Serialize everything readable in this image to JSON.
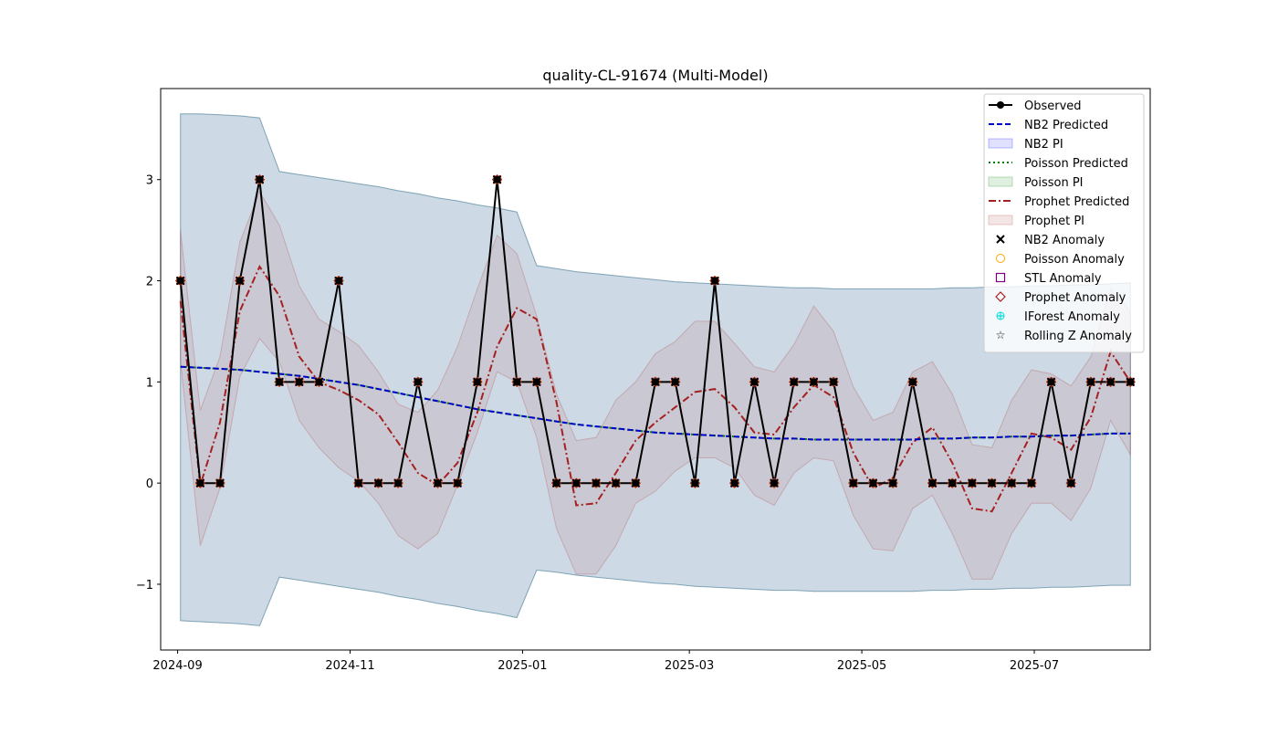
{
  "chart_data": {
    "type": "line",
    "title": "quality-CL-91674 (Multi-Model)",
    "xlabel": "",
    "ylabel": "",
    "x_dates": [
      "2024-09-02",
      "2024-09-09",
      "2024-09-16",
      "2024-09-23",
      "2024-09-30",
      "2024-10-07",
      "2024-10-14",
      "2024-10-21",
      "2024-10-28",
      "2024-11-04",
      "2024-11-11",
      "2024-11-18",
      "2024-11-25",
      "2024-12-02",
      "2024-12-09",
      "2024-12-16",
      "2024-12-23",
      "2024-12-30",
      "2025-01-06",
      "2025-01-13",
      "2025-01-20",
      "2025-01-27",
      "2025-02-03",
      "2025-02-10",
      "2025-02-17",
      "2025-02-24",
      "2025-03-03",
      "2025-03-10",
      "2025-03-17",
      "2025-03-24",
      "2025-03-31",
      "2025-04-07",
      "2025-04-14",
      "2025-04-21",
      "2025-04-28",
      "2025-05-05",
      "2025-05-12",
      "2025-05-19",
      "2025-05-26",
      "2025-06-02",
      "2025-06-09",
      "2025-06-16",
      "2025-06-23",
      "2025-06-30",
      "2025-07-07",
      "2025-07-14",
      "2025-07-21",
      "2025-07-28",
      "2025-08-04"
    ],
    "xlim": [
      "2024-08-26",
      "2025-08-11"
    ],
    "ylim": [
      -1.65,
      3.9
    ],
    "x_ticks": [
      "2024-09",
      "2024-11",
      "2025-01",
      "2025-03",
      "2025-05",
      "2025-07"
    ],
    "y_ticks": [
      -1,
      0,
      1,
      2,
      3
    ],
    "series": [
      {
        "name": "Observed",
        "color": "#000000",
        "style": "solid-marker",
        "values": [
          2,
          0,
          0,
          2,
          3,
          1,
          1,
          1,
          2,
          0,
          0,
          0,
          1,
          0,
          0,
          1,
          3,
          1,
          1,
          0,
          0,
          0,
          0,
          0,
          1,
          1,
          0,
          2,
          0,
          1,
          0,
          1,
          1,
          1,
          0,
          0,
          0,
          1,
          0,
          0,
          0,
          0,
          0,
          0,
          1,
          0,
          1,
          1,
          1
        ]
      },
      {
        "name": "NB2 Predicted",
        "color": "#0000cc",
        "style": "dashed",
        "values": [
          1.15,
          1.14,
          1.13,
          1.12,
          1.1,
          1.08,
          1.06,
          1.03,
          1.0,
          0.97,
          0.93,
          0.89,
          0.85,
          0.81,
          0.77,
          0.73,
          0.7,
          0.67,
          0.64,
          0.61,
          0.58,
          0.56,
          0.54,
          0.52,
          0.5,
          0.49,
          0.48,
          0.47,
          0.46,
          0.45,
          0.44,
          0.44,
          0.43,
          0.43,
          0.43,
          0.43,
          0.43,
          0.43,
          0.44,
          0.44,
          0.45,
          0.45,
          0.46,
          0.46,
          0.47,
          0.47,
          0.48,
          0.49,
          0.49
        ]
      },
      {
        "name": "Poisson Predicted",
        "color": "#008000",
        "style": "dotted",
        "values": [
          1.15,
          1.14,
          1.13,
          1.12,
          1.1,
          1.08,
          1.06,
          1.03,
          1.0,
          0.97,
          0.93,
          0.89,
          0.85,
          0.81,
          0.77,
          0.73,
          0.7,
          0.67,
          0.64,
          0.61,
          0.58,
          0.56,
          0.54,
          0.52,
          0.5,
          0.49,
          0.48,
          0.47,
          0.46,
          0.45,
          0.44,
          0.44,
          0.43,
          0.43,
          0.43,
          0.43,
          0.43,
          0.43,
          0.44,
          0.44,
          0.45,
          0.45,
          0.46,
          0.46,
          0.47,
          0.47,
          0.48,
          0.49,
          0.49
        ]
      },
      {
        "name": "Prophet Predicted",
        "color": "#a52020",
        "style": "dashdot",
        "values": [
          1.8,
          -0.02,
          0.6,
          1.7,
          2.14,
          1.85,
          1.25,
          1.0,
          0.92,
          0.82,
          0.68,
          0.4,
          0.1,
          -0.02,
          0.2,
          0.7,
          1.35,
          1.73,
          1.62,
          0.8,
          -0.22,
          -0.2,
          0.1,
          0.42,
          0.6,
          0.75,
          0.9,
          0.93,
          0.75,
          0.5,
          0.48,
          0.75,
          0.97,
          0.85,
          0.3,
          -0.05,
          0.05,
          0.4,
          0.55,
          0.2,
          -0.25,
          -0.28,
          0.1,
          0.49,
          0.45,
          0.33,
          0.65,
          1.3,
          1.0
        ]
      }
    ],
    "bands": [
      {
        "name": "NB2 PI",
        "color": "#0000ff",
        "opacity": 0.1,
        "lower": [
          -1.36,
          -1.37,
          -1.38,
          -1.39,
          -1.41,
          -0.93,
          -0.96,
          -0.99,
          -1.02,
          -1.05,
          -1.08,
          -1.12,
          -1.15,
          -1.19,
          -1.22,
          -1.26,
          -1.29,
          -1.33,
          -0.86,
          -0.88,
          -0.91,
          -0.93,
          -0.95,
          -0.97,
          -0.99,
          -1.0,
          -1.02,
          -1.03,
          -1.04,
          -1.05,
          -1.06,
          -1.06,
          -1.07,
          -1.07,
          -1.07,
          -1.07,
          -1.07,
          -1.07,
          -1.06,
          -1.06,
          -1.05,
          -1.05,
          -1.04,
          -1.04,
          -1.03,
          -1.03,
          -1.02,
          -1.01,
          -1.01
        ],
        "upper": [
          3.65,
          3.65,
          3.64,
          3.63,
          3.61,
          3.08,
          3.05,
          3.02,
          2.99,
          2.96,
          2.93,
          2.89,
          2.86,
          2.82,
          2.79,
          2.75,
          2.72,
          2.68,
          2.15,
          2.12,
          2.09,
          2.07,
          2.05,
          2.03,
          2.01,
          1.99,
          1.98,
          1.97,
          1.96,
          1.95,
          1.94,
          1.93,
          1.93,
          1.92,
          1.92,
          1.92,
          1.92,
          1.92,
          1.92,
          1.93,
          1.93,
          1.94,
          1.94,
          1.95,
          1.95,
          1.96,
          1.96,
          1.97,
          1.98
        ]
      },
      {
        "name": "Poisson PI",
        "color": "#008000",
        "opacity": 0.1,
        "lower": [
          -1.36,
          -1.37,
          -1.38,
          -1.39,
          -1.41,
          -0.93,
          -0.96,
          -0.99,
          -1.02,
          -1.05,
          -1.08,
          -1.12,
          -1.15,
          -1.19,
          -1.22,
          -1.26,
          -1.29,
          -1.33,
          -0.86,
          -0.88,
          -0.91,
          -0.93,
          -0.95,
          -0.97,
          -0.99,
          -1.0,
          -1.02,
          -1.03,
          -1.04,
          -1.05,
          -1.06,
          -1.06,
          -1.07,
          -1.07,
          -1.07,
          -1.07,
          -1.07,
          -1.07,
          -1.06,
          -1.06,
          -1.05,
          -1.05,
          -1.04,
          -1.04,
          -1.03,
          -1.03,
          -1.02,
          -1.01,
          -1.01
        ],
        "upper": [
          3.65,
          3.65,
          3.64,
          3.63,
          3.61,
          3.08,
          3.05,
          3.02,
          2.99,
          2.96,
          2.93,
          2.89,
          2.86,
          2.82,
          2.79,
          2.75,
          2.72,
          2.68,
          2.15,
          2.12,
          2.09,
          2.07,
          2.05,
          2.03,
          2.01,
          1.99,
          1.98,
          1.97,
          1.96,
          1.95,
          1.94,
          1.93,
          1.93,
          1.92,
          1.92,
          1.92,
          1.92,
          1.92,
          1.92,
          1.93,
          1.93,
          1.94,
          1.94,
          1.95,
          1.95,
          1.96,
          1.96,
          1.97,
          1.98
        ]
      },
      {
        "name": "Prophet PI",
        "color": "#b03030",
        "opacity": 0.1,
        "lower": [
          1.2,
          -0.62,
          -0.05,
          1.05,
          1.43,
          1.2,
          0.62,
          0.35,
          0.15,
          0.02,
          -0.2,
          -0.52,
          -0.65,
          -0.5,
          -0.02,
          0.5,
          1.1,
          1.0,
          0.45,
          -0.45,
          -0.9,
          -0.9,
          -0.62,
          -0.2,
          -0.08,
          0.12,
          0.25,
          0.25,
          0.15,
          -0.12,
          -0.22,
          0.1,
          0.25,
          0.22,
          -0.32,
          -0.65,
          -0.67,
          -0.25,
          -0.12,
          -0.5,
          -0.95,
          -0.95,
          -0.5,
          -0.2,
          -0.2,
          -0.37,
          -0.05,
          0.62,
          0.28
        ],
        "upper": [
          2.5,
          0.72,
          1.25,
          2.38,
          2.88,
          2.55,
          1.95,
          1.62,
          1.5,
          1.36,
          1.1,
          0.78,
          0.7,
          0.92,
          1.35,
          1.92,
          2.45,
          2.27,
          1.65,
          0.88,
          0.42,
          0.45,
          0.82,
          1.0,
          1.28,
          1.4,
          1.6,
          1.6,
          1.38,
          1.15,
          1.1,
          1.37,
          1.75,
          1.5,
          0.95,
          0.62,
          0.7,
          1.1,
          1.2,
          0.88,
          0.38,
          0.35,
          0.82,
          1.12,
          1.08,
          0.96,
          1.25,
          1.92,
          1.7
        ]
      }
    ],
    "anomaly_markers": [
      "NB2 Anomaly",
      "Poisson Anomaly",
      "STL Anomaly",
      "Prophet Anomaly",
      "IForest Anomaly",
      "Rolling Z Anomaly"
    ],
    "anomaly_indices": [
      0,
      1,
      2,
      3,
      4,
      5,
      6,
      7,
      8,
      9,
      10,
      11,
      12,
      13,
      14,
      15,
      16,
      17,
      18,
      19,
      20,
      21,
      22,
      23,
      24,
      25,
      26,
      27,
      28,
      29,
      30,
      31,
      32,
      33,
      34,
      35,
      36,
      37,
      38,
      39,
      40,
      41,
      42,
      43,
      44,
      45,
      46,
      47,
      48
    ],
    "grid": false,
    "legend_position": "top-right",
    "legend": [
      {
        "label": "Observed",
        "kind": "line-marker",
        "color": "#000000"
      },
      {
        "label": "NB2 Predicted",
        "kind": "dashed",
        "color": "#0000cc"
      },
      {
        "label": "NB2 PI",
        "kind": "patch",
        "color": "#0000ff"
      },
      {
        "label": "Poisson Predicted",
        "kind": "dotted",
        "color": "#008000"
      },
      {
        "label": "Poisson PI",
        "kind": "patch",
        "color": "#008000"
      },
      {
        "label": "Prophet Predicted",
        "kind": "dashdot",
        "color": "#a52020"
      },
      {
        "label": "Prophet PI",
        "kind": "patch",
        "color": "#b03030"
      },
      {
        "label": "NB2 Anomaly",
        "kind": "x-marker",
        "color": "#000000"
      },
      {
        "label": "Poisson Anomaly",
        "kind": "circle-marker",
        "color": "#ffa500"
      },
      {
        "label": "STL Anomaly",
        "kind": "square-marker",
        "color": "#800080"
      },
      {
        "label": "Prophet Anomaly",
        "kind": "diamond-marker",
        "color": "#a52020"
      },
      {
        "label": "IForest Anomaly",
        "kind": "plus-marker",
        "color": "#00dddd"
      },
      {
        "label": "Rolling Z Anomaly",
        "kind": "star-marker",
        "color": "#ff00ff"
      }
    ]
  }
}
